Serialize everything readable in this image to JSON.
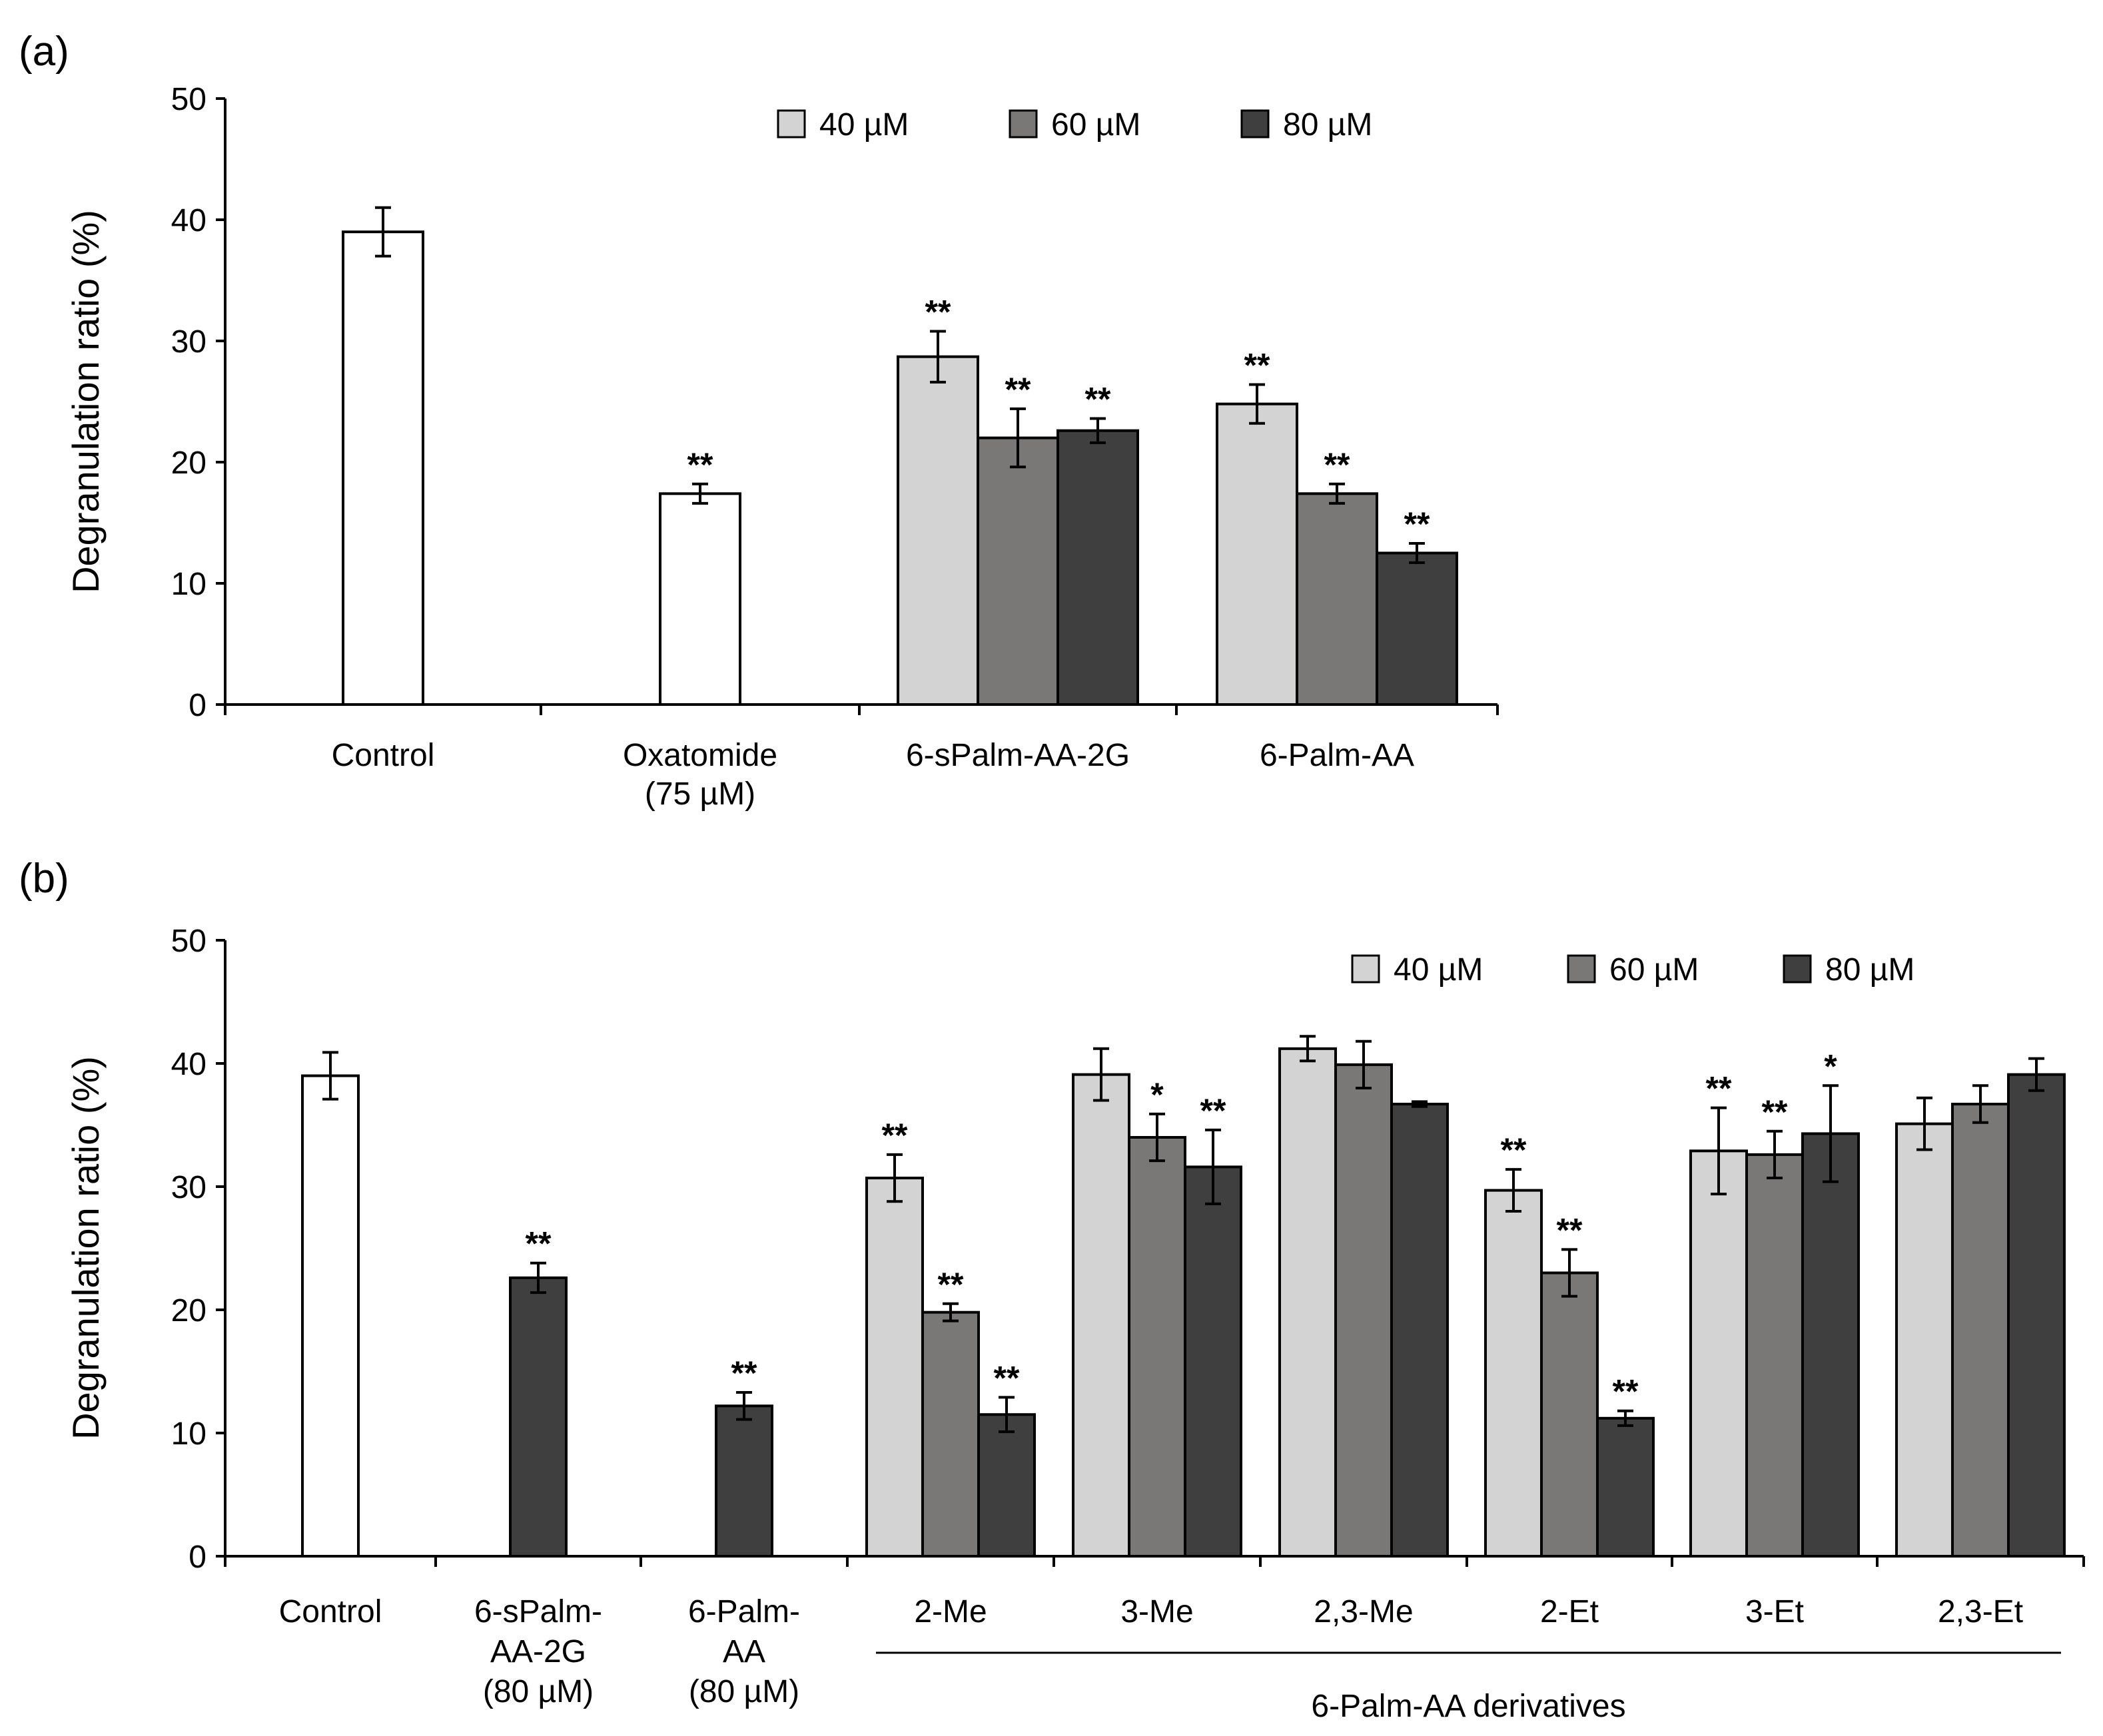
{
  "chart_data": [
    {
      "panel_label": "(a)",
      "type": "bar",
      "ylabel": "Degranulation ratio (%)",
      "ylim": [
        0,
        50
      ],
      "yticks": [
        0,
        10,
        20,
        30,
        40,
        50
      ],
      "legend": [
        {
          "label": "40 µM",
          "color": "#d3d3d3"
        },
        {
          "label": "60 µM",
          "color": "#7a7877"
        },
        {
          "label": "80 µM",
          "color": "#3f3f3f"
        }
      ],
      "legend_position": "top-right",
      "groups": [
        {
          "label_lines": [
            "Control"
          ],
          "bars": [
            {
              "value": 39.0,
              "error": 2.0,
              "color": "#ffffff",
              "star": ""
            }
          ]
        },
        {
          "label_lines": [
            "Oxatomide",
            "(75 µM)"
          ],
          "bars": [
            {
              "value": 17.4,
              "error": 0.8,
              "color": "#ffffff",
              "star": "**"
            }
          ]
        },
        {
          "label_lines": [
            "6-sPalm-AA-2G"
          ],
          "bars": [
            {
              "value": 28.7,
              "error": 2.1,
              "color": "#d3d3d3",
              "star": "**"
            },
            {
              "value": 22.0,
              "error": 2.4,
              "color": "#7a7877",
              "star": "**"
            },
            {
              "value": 22.6,
              "error": 1.0,
              "color": "#3f3f3f",
              "star": "**"
            }
          ]
        },
        {
          "label_lines": [
            "6-Palm-AA"
          ],
          "bars": [
            {
              "value": 24.8,
              "error": 1.6,
              "color": "#d3d3d3",
              "star": "**"
            },
            {
              "value": 17.4,
              "error": 0.8,
              "color": "#7a7877",
              "star": "**"
            },
            {
              "value": 12.5,
              "error": 0.8,
              "color": "#3f3f3f",
              "star": "**"
            }
          ]
        }
      ]
    },
    {
      "panel_label": "(b)",
      "type": "bar",
      "ylabel": "Degranulation ratio (%)",
      "ylim": [
        0,
        50
      ],
      "yticks": [
        0,
        10,
        20,
        30,
        40,
        50
      ],
      "legend": [
        {
          "label": "40 µM",
          "color": "#d3d3d3"
        },
        {
          "label": "60 µM",
          "color": "#7a7877"
        },
        {
          "label": "80 µM",
          "color": "#3f3f3f"
        }
      ],
      "legend_position": "top-right",
      "bracket_label": "6-Palm-AA derivatives",
      "groups": [
        {
          "label_lines": [
            "Control"
          ],
          "bars": [
            {
              "value": 39.0,
              "error": 1.9,
              "color": "#ffffff",
              "star": ""
            }
          ]
        },
        {
          "label_lines": [
            "6-sPalm-",
            "AA-2G",
            "(80 µM)"
          ],
          "bars": [
            {
              "value": 22.6,
              "error": 1.2,
              "color": "#3f3f3f",
              "star": "**"
            }
          ]
        },
        {
          "label_lines": [
            "6-Palm-",
            "AA",
            "(80 µM)"
          ],
          "bars": [
            {
              "value": 12.2,
              "error": 1.1,
              "color": "#3f3f3f",
              "star": "**"
            }
          ]
        },
        {
          "label_lines": [
            "2-Me"
          ],
          "bars": [
            {
              "value": 30.7,
              "error": 1.9,
              "color": "#d3d3d3",
              "star": "**"
            },
            {
              "value": 19.8,
              "error": 0.7,
              "color": "#7a7877",
              "star": "**"
            },
            {
              "value": 11.5,
              "error": 1.4,
              "color": "#3f3f3f",
              "star": "**"
            }
          ]
        },
        {
          "label_lines": [
            "3-Me"
          ],
          "bars": [
            {
              "value": 39.1,
              "error": 2.1,
              "color": "#d3d3d3",
              "star": ""
            },
            {
              "value": 34.0,
              "error": 1.9,
              "color": "#7a7877",
              "star": "*"
            },
            {
              "value": 31.6,
              "error": 3.0,
              "color": "#3f3f3f",
              "star": "**"
            }
          ]
        },
        {
          "label_lines": [
            "2,3-Me"
          ],
          "bars": [
            {
              "value": 41.2,
              "error": 1.0,
              "color": "#d3d3d3",
              "star": ""
            },
            {
              "value": 39.9,
              "error": 1.9,
              "color": "#7a7877",
              "star": ""
            },
            {
              "value": 36.7,
              "error": 0.2,
              "color": "#3f3f3f",
              "star": ""
            }
          ]
        },
        {
          "label_lines": [
            "2-Et"
          ],
          "bars": [
            {
              "value": 29.7,
              "error": 1.7,
              "color": "#d3d3d3",
              "star": "**"
            },
            {
              "value": 23.0,
              "error": 1.9,
              "color": "#7a7877",
              "star": "**"
            },
            {
              "value": 11.2,
              "error": 0.6,
              "color": "#3f3f3f",
              "star": "**"
            }
          ]
        },
        {
          "label_lines": [
            "3-Et"
          ],
          "bars": [
            {
              "value": 32.9,
              "error": 3.5,
              "color": "#d3d3d3",
              "star": "**"
            },
            {
              "value": 32.6,
              "error": 1.9,
              "color": "#7a7877",
              "star": "**"
            },
            {
              "value": 34.3,
              "error": 3.9,
              "color": "#3f3f3f",
              "star": "*"
            }
          ]
        },
        {
          "label_lines": [
            "2,3-Et"
          ],
          "bars": [
            {
              "value": 35.1,
              "error": 2.1,
              "color": "#d3d3d3",
              "star": ""
            },
            {
              "value": 36.7,
              "error": 1.5,
              "color": "#7a7877",
              "star": ""
            },
            {
              "value": 39.1,
              "error": 1.3,
              "color": "#3f3f3f",
              "star": ""
            }
          ]
        }
      ]
    }
  ]
}
